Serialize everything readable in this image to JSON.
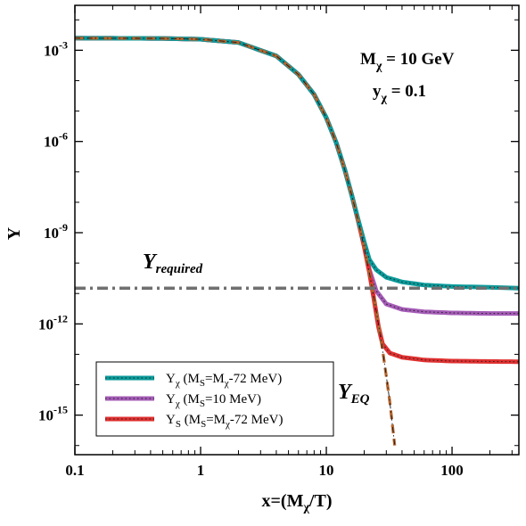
{
  "chart_data": {
    "type": "line",
    "xlabel": "x=(M",
    "xlabel_sub": "χ",
    "xlabel_tail": "/T)",
    "ylabel": "Y",
    "xscale": "log",
    "yscale": "log",
    "xlim": [
      0.1,
      340
    ],
    "ylim": [
      5e-17,
      0.03
    ],
    "x_ticks": [
      {
        "value": 0.1,
        "label": "0.1"
      },
      {
        "value": 1,
        "label": "1"
      },
      {
        "value": 10,
        "label": "10"
      },
      {
        "value": 100,
        "label": "100"
      }
    ],
    "y_ticks": [
      {
        "value": 0.001,
        "base": "10",
        "exp": "-3"
      },
      {
        "value": 1e-06,
        "base": "10",
        "exp": "-6"
      },
      {
        "value": 1e-09,
        "base": "10",
        "exp": "-9"
      },
      {
        "value": 1e-12,
        "base": "10",
        "exp": "-12"
      },
      {
        "value": 1e-15,
        "base": "10",
        "exp": "-15"
      }
    ],
    "annotations": {
      "mass": {
        "main": "M",
        "sub": "χ",
        "tail": " = 10 GeV"
      },
      "coupling": {
        "main": "y",
        "sub": "χ",
        "tail": " = 0.1"
      },
      "y_required": {
        "main": "Y",
        "sub": "required"
      },
      "y_eq": {
        "main": "Y",
        "sub": "EQ"
      }
    },
    "legend": {
      "placement": "lower-left",
      "entries": [
        {
          "color": "#0a9a9a",
          "main": "Y",
          "sub1": "χ",
          "mid": " (M",
          "sub2": "S",
          "tail": "=M",
          "sub3": "χ",
          "end": "-72 MeV)"
        },
        {
          "color": "#a45bb6",
          "main": "Y",
          "sub1": "χ",
          "mid": " (M",
          "sub2": "S",
          "tail": "=10 MeV)",
          "sub3": "",
          "end": ""
        },
        {
          "color": "#e03030",
          "main": "Y",
          "sub1": "S",
          "mid": " (M",
          "sub2": "S",
          "tail": "=M",
          "sub3": "χ",
          "end": "-72 MeV)"
        }
      ]
    },
    "y_required_value": 1.5e-11,
    "series": [
      {
        "color": "#a45bb6",
        "x": [
          0.1,
          0.5,
          1,
          2,
          4,
          6,
          8,
          10,
          12,
          14,
          16,
          18,
          20,
          22,
          25,
          30,
          40,
          60,
          100,
          200,
          340
        ],
        "y": [
          0.0025,
          0.00245,
          0.0023,
          0.0018,
          0.00065,
          0.00016,
          3.5e-05,
          6e-06,
          9e-07,
          1.2e-07,
          1.6e-08,
          2.3e-09,
          4e-10,
          6e-11,
          1.2e-11,
          4.5e-12,
          3e-12,
          2.5e-12,
          2.3e-12,
          2.2e-12,
          2.2e-12
        ]
      },
      {
        "color": "#e03030",
        "x": [
          0.1,
          0.5,
          1,
          2,
          4,
          6,
          8,
          10,
          12,
          14,
          16,
          18,
          20,
          22,
          24,
          26,
          28,
          32,
          40,
          60,
          100,
          200,
          340
        ],
        "y": [
          0.0025,
          0.00245,
          0.0023,
          0.0018,
          0.00065,
          0.00016,
          3.5e-05,
          6e-06,
          9e-07,
          1.2e-07,
          1.6e-08,
          2.3e-09,
          3.5e-10,
          5e-11,
          6e-12,
          8e-13,
          2.2e-13,
          1.1e-13,
          8e-14,
          6.5e-14,
          6e-14,
          5.8e-14,
          5.7e-14
        ]
      },
      {
        "color": "#0a9a9a",
        "x": [
          0.1,
          0.5,
          1,
          2,
          4,
          6,
          8,
          10,
          12,
          14,
          16,
          18,
          20,
          22,
          25,
          30,
          40,
          60,
          100,
          200,
          340
        ],
        "y": [
          0.0025,
          0.00245,
          0.0023,
          0.0018,
          0.00065,
          0.00016,
          3.5e-05,
          6e-06,
          9e-07,
          1.2e-07,
          1.6e-08,
          2.5e-09,
          5e-10,
          1.3e-10,
          6e-11,
          3.4e-11,
          2.4e-11,
          1.9e-11,
          1.7e-11,
          1.6e-11,
          1.5e-11
        ]
      },
      {
        "color": "#b5652e",
        "dashed": true,
        "x": [
          0.1,
          0.5,
          1,
          2,
          4,
          6,
          8,
          10,
          12,
          14,
          16,
          18,
          20,
          22,
          24,
          26,
          28,
          30,
          32,
          35
        ],
        "y": [
          0.0025,
          0.00245,
          0.0023,
          0.0018,
          0.00065,
          0.00016,
          3.5e-05,
          6e-06,
          9e-07,
          1.2e-07,
          1.6e-08,
          2.3e-09,
          3.3e-10,
          4.8e-11,
          6.8e-12,
          9.6e-13,
          1.4e-13,
          1.9e-14,
          2.7e-15,
          1e-16
        ]
      }
    ]
  }
}
